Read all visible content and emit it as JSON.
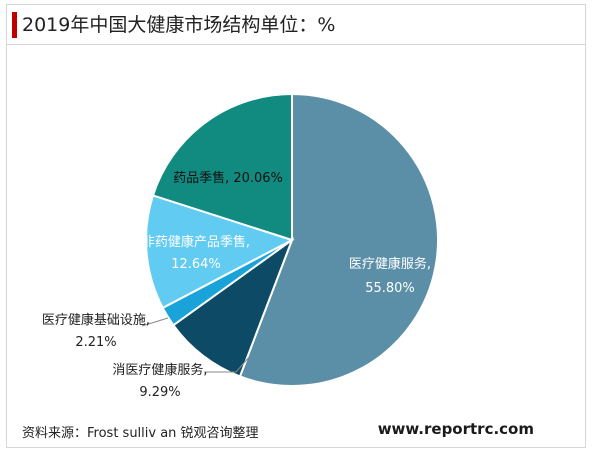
{
  "title": "2019年中国大健康市场结构单位：%",
  "source": "资料来源：Frost sulliv an 锐观咨询整理",
  "site": "www.reportrc.com",
  "chart_data": {
    "type": "pie",
    "title": "2019年中国大健康市场结构单位：%",
    "slices": [
      {
        "name": "医疗健康服务",
        "value": 55.8,
        "label": "55.80%",
        "color": "#5b8fa8"
      },
      {
        "name": "消医疗健康服务",
        "value": 9.29,
        "label": "9.29%",
        "color": "#0d4a66"
      },
      {
        "name": "医疗健康基础设施",
        "value": 2.21,
        "label": "2.21%",
        "color": "#1aa3d9"
      },
      {
        "name": "非药健康产品季售",
        "value": 12.64,
        "label": "12.64%",
        "color": "#62cbf2"
      },
      {
        "name": "药品季售",
        "value": 20.06,
        "label": "20.06%",
        "color": "#118a80"
      }
    ]
  }
}
